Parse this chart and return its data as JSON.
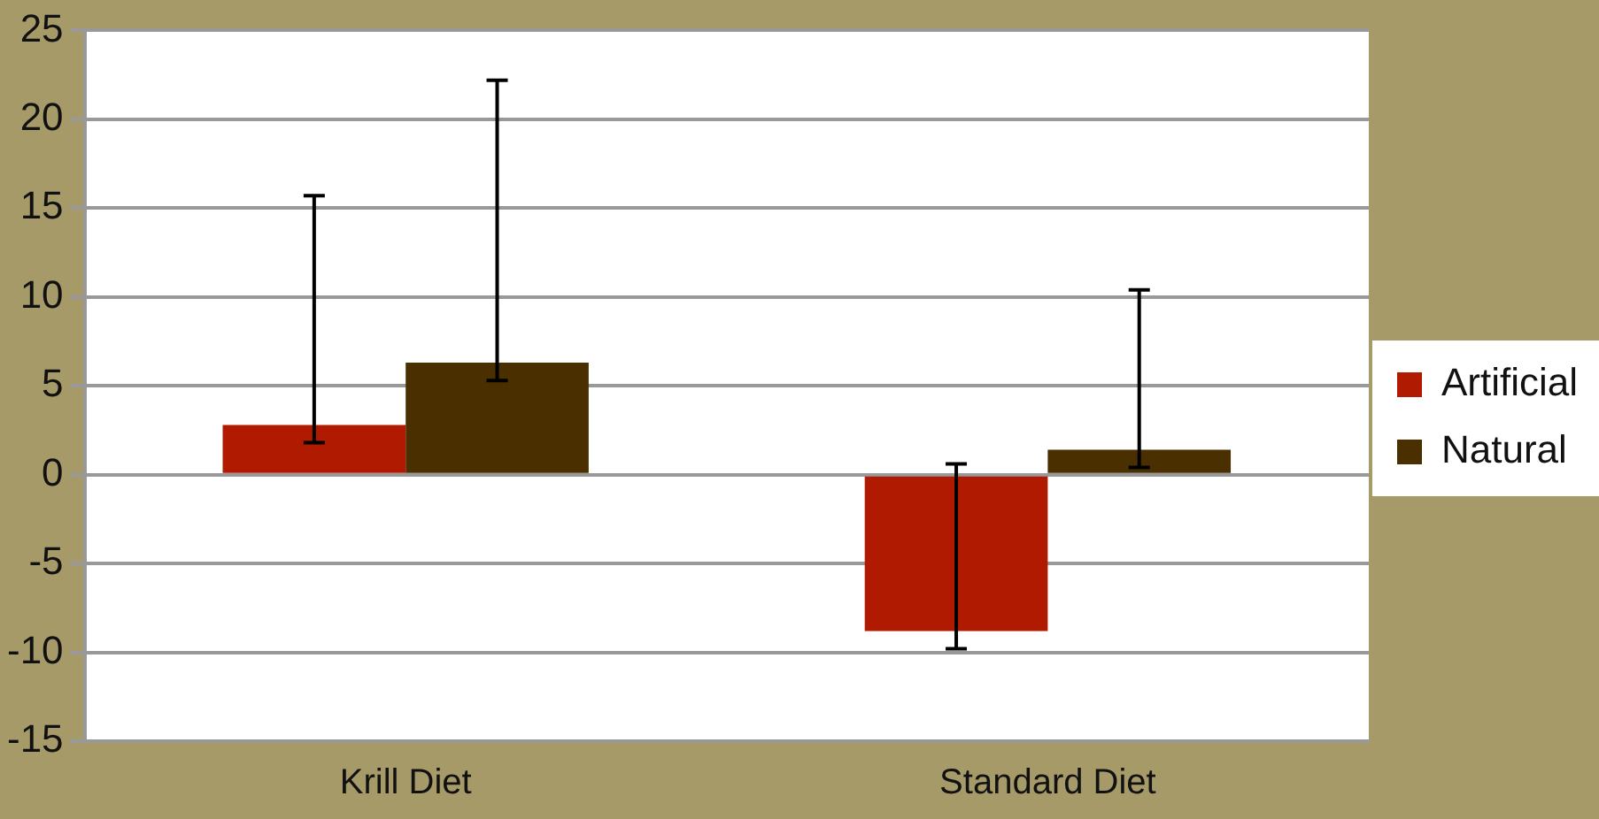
{
  "chart_data": {
    "type": "bar",
    "categories": [
      "Krill Diet",
      "Standard Diet"
    ],
    "series": [
      {
        "name": "Artificial",
        "color": "#b01a00",
        "values": [
          2.8,
          -8.8
        ],
        "errors": [
          [
            1.8,
            15.7
          ],
          [
            -9.8,
            0.6
          ]
        ]
      },
      {
        "name": "Natural",
        "color": "#4a3000",
        "values": [
          6.3,
          1.4
        ],
        "errors": [
          [
            5.3,
            22.2
          ],
          [
            0.4,
            10.4
          ]
        ]
      }
    ],
    "ylim": [
      -15,
      25
    ],
    "yticks": [
      -15,
      -10,
      -5,
      0,
      5,
      10,
      15,
      20,
      25
    ],
    "grid": "y",
    "legend": "right"
  }
}
